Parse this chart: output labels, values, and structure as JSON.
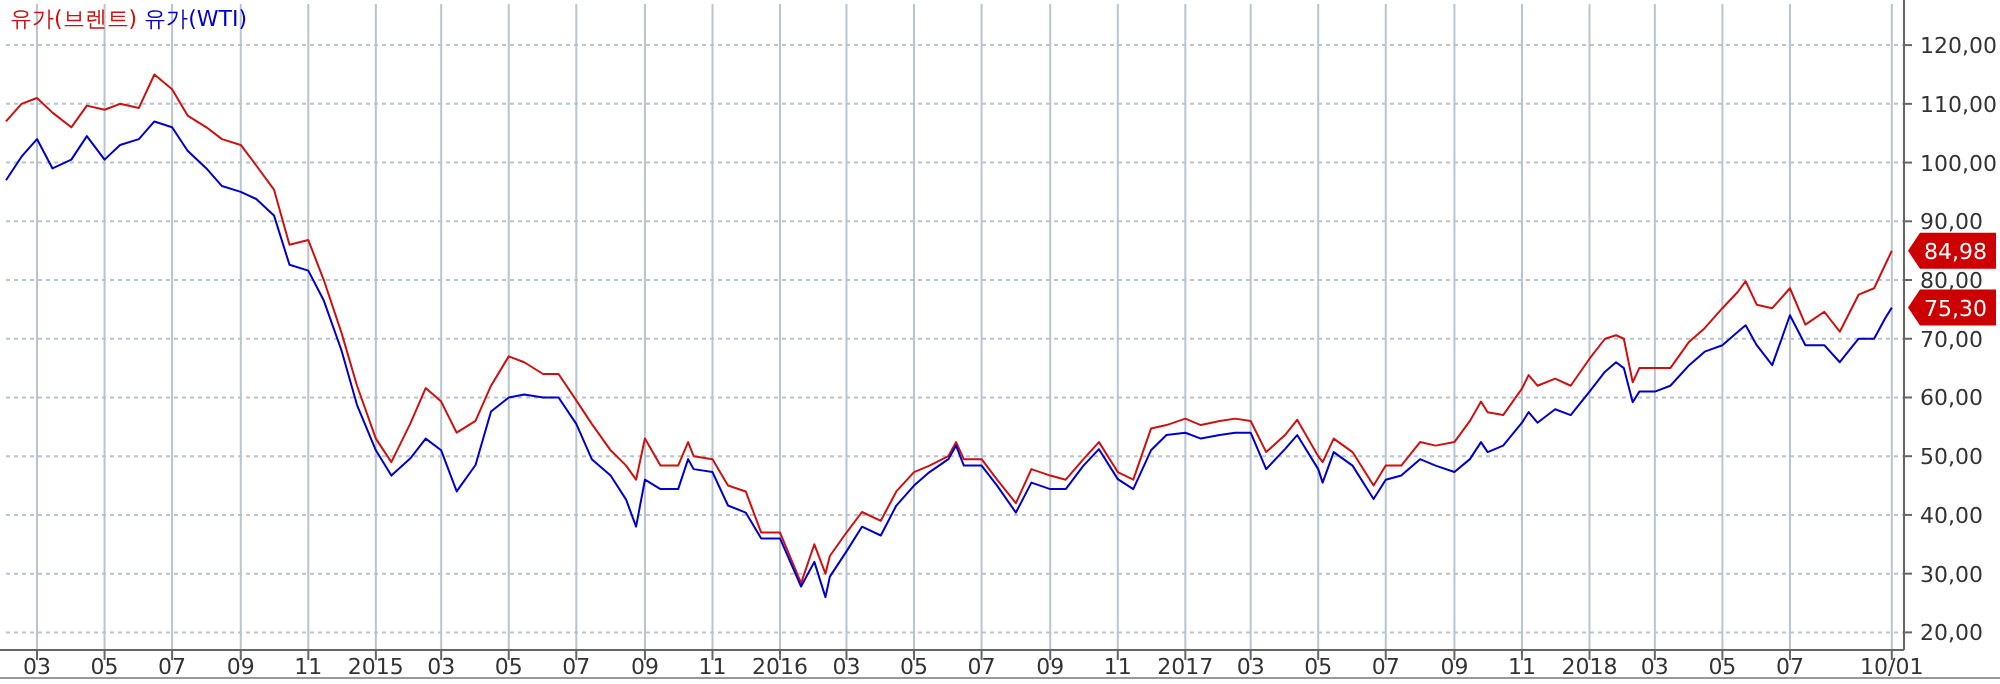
{
  "chart_data": {
    "type": "line",
    "x": [
      "2014-02-01",
      "2014-02-15",
      "2014-03-01",
      "2014-03-15",
      "2014-04-01",
      "2014-04-15",
      "2014-05-01",
      "2014-05-15",
      "2014-06-01",
      "2014-06-15",
      "2014-07-01",
      "2014-07-15",
      "2014-08-01",
      "2014-08-15",
      "2014-09-01",
      "2014-09-15",
      "2014-10-01",
      "2014-10-15",
      "2014-11-01",
      "2014-11-15",
      "2014-12-01",
      "2014-12-15",
      "2015-01-01",
      "2015-01-15",
      "2015-02-01",
      "2015-02-15",
      "2015-03-01",
      "2015-03-15",
      "2015-04-01",
      "2015-04-15",
      "2015-05-01",
      "2015-05-15",
      "2015-06-01",
      "2015-06-15",
      "2015-07-01",
      "2015-07-15",
      "2015-08-01",
      "2015-08-15",
      "2015-08-24",
      "2015-09-01",
      "2015-09-15",
      "2015-10-01",
      "2015-10-10",
      "2015-10-15",
      "2015-11-01",
      "2015-11-15",
      "2015-12-01",
      "2015-12-15",
      "2016-01-01",
      "2016-01-20",
      "2016-02-01",
      "2016-02-11",
      "2016-02-15",
      "2016-03-01",
      "2016-03-15",
      "2016-04-01",
      "2016-04-15",
      "2016-05-01",
      "2016-05-15",
      "2016-06-01",
      "2016-06-08",
      "2016-06-15",
      "2016-07-01",
      "2016-07-15",
      "2016-08-01",
      "2016-08-15",
      "2016-09-01",
      "2016-09-15",
      "2016-10-01",
      "2016-10-15",
      "2016-11-01",
      "2016-11-15",
      "2016-12-01",
      "2016-12-15",
      "2017-01-01",
      "2017-01-15",
      "2017-02-01",
      "2017-02-15",
      "2017-03-01",
      "2017-03-15",
      "2017-04-01",
      "2017-04-12",
      "2017-05-01",
      "2017-05-05",
      "2017-05-15",
      "2017-06-01",
      "2017-06-20",
      "2017-07-01",
      "2017-07-15",
      "2017-08-01",
      "2017-08-15",
      "2017-09-01",
      "2017-09-15",
      "2017-09-25",
      "2017-10-01",
      "2017-10-15",
      "2017-11-01",
      "2017-11-07",
      "2017-11-15",
      "2017-12-01",
      "2017-12-15",
      "2018-01-01",
      "2018-01-15",
      "2018-01-25",
      "2018-02-01",
      "2018-02-09",
      "2018-02-15",
      "2018-03-01",
      "2018-03-15",
      "2018-04-01",
      "2018-04-15",
      "2018-05-01",
      "2018-05-15",
      "2018-05-22",
      "2018-06-01",
      "2018-06-15",
      "2018-07-01",
      "2018-07-15",
      "2018-08-01",
      "2018-08-15",
      "2018-09-01",
      "2018-09-15",
      "2018-09-25",
      "2018-10-01"
    ],
    "series": [
      {
        "name": "유가(브렌트)",
        "color": "#cc1111",
        "values": [
          107,
          110,
          111,
          108.5,
          106,
          109.7,
          109,
          110,
          109.3,
          115,
          112.5,
          108,
          106,
          104,
          103,
          99.5,
          95.4,
          86,
          86.8,
          80,
          71,
          62,
          53,
          49,
          55.5,
          61.6,
          59.3,
          54,
          56,
          62,
          67,
          66,
          64,
          64,
          59.5,
          55.5,
          51,
          48.4,
          46,
          53,
          48.4,
          48.4,
          52.4,
          50,
          49.5,
          45,
          44,
          37,
          37,
          28.4,
          35,
          30,
          33,
          37,
          40.5,
          39,
          44,
          47.3,
          48.4,
          50,
          52.4,
          49.5,
          49.5,
          46,
          42,
          47.8,
          46.7,
          46,
          49.5,
          52.4,
          47.3,
          46,
          54.7,
          55.3,
          56.4,
          55.3,
          56,
          56.4,
          56,
          50.7,
          53.6,
          56.2,
          50,
          49,
          53,
          50.7,
          45,
          48.4,
          48.4,
          52.4,
          51.8,
          52.4,
          56,
          59.3,
          57.5,
          57,
          61.5,
          63.8,
          62,
          63.2,
          62,
          66.6,
          70,
          70.6,
          70,
          62.6,
          65,
          65,
          65,
          69.5,
          71.8,
          75.2,
          78,
          79.8,
          75.8,
          75.2,
          78.6,
          72.4,
          74.6,
          71.2,
          77.5,
          78.6,
          82.6,
          84.98
        ]
      },
      {
        "name": "유가(WTI)",
        "color": "#0000cc",
        "values": [
          97,
          101,
          104,
          99,
          100.5,
          104.5,
          100.5,
          103,
          104,
          107,
          106,
          102,
          99,
          96,
          95,
          93.8,
          91,
          82.6,
          81.6,
          76.5,
          68,
          58.7,
          51,
          46.7,
          49.6,
          53,
          51,
          44,
          48.5,
          57.6,
          60,
          60.5,
          60,
          60,
          55.5,
          49.5,
          46.7,
          42.6,
          38,
          46,
          44.4,
          44.4,
          49.5,
          47.8,
          47.3,
          41.6,
          40.4,
          36,
          36,
          27.8,
          32,
          26,
          29.5,
          33.8,
          38,
          36.5,
          41.6,
          45,
          47.3,
          49.5,
          51.8,
          48.4,
          48.4,
          45,
          40.4,
          45.5,
          44.4,
          44.4,
          48.4,
          51.2,
          46.1,
          44.4,
          51,
          53.6,
          54,
          53,
          53.6,
          54,
          54,
          47.8,
          51.2,
          53.6,
          47.8,
          45.5,
          50.7,
          48.4,
          42.7,
          46,
          46.7,
          49.5,
          48.4,
          47.3,
          49.5,
          52.4,
          50.7,
          51.8,
          55.7,
          57.5,
          55.7,
          58,
          57,
          61,
          64.4,
          66,
          65,
          59.2,
          61,
          61,
          62,
          65.5,
          67.8,
          68.9,
          71.2,
          72.3,
          68.9,
          65.5,
          74,
          68.9,
          68.9,
          66,
          70,
          70,
          73.5,
          75.3
        ]
      }
    ],
    "annotations": [
      {
        "text": "84,98",
        "x": "2018-10-01",
        "y": 84.98
      },
      {
        "text": "75,30",
        "x": "2018-10-01",
        "y": 75.3
      }
    ],
    "xlim": [
      "2014-02-01",
      "2018-10-12"
    ],
    "xticks": [
      {
        "value": "2014-03-01",
        "label": "03"
      },
      {
        "value": "2014-05-01",
        "label": "05"
      },
      {
        "value": "2014-07-01",
        "label": "07"
      },
      {
        "value": "2014-09-01",
        "label": "09"
      },
      {
        "value": "2014-11-01",
        "label": "11"
      },
      {
        "value": "2015-01-01",
        "label": "2015"
      },
      {
        "value": "2015-03-01",
        "label": "03"
      },
      {
        "value": "2015-05-01",
        "label": "05"
      },
      {
        "value": "2015-07-01",
        "label": "07"
      },
      {
        "value": "2015-09-01",
        "label": "09"
      },
      {
        "value": "2015-11-01",
        "label": "11"
      },
      {
        "value": "2016-01-01",
        "label": "2016"
      },
      {
        "value": "2016-03-01",
        "label": "03"
      },
      {
        "value": "2016-05-01",
        "label": "05"
      },
      {
        "value": "2016-07-01",
        "label": "07"
      },
      {
        "value": "2016-09-01",
        "label": "09"
      },
      {
        "value": "2016-11-01",
        "label": "11"
      },
      {
        "value": "2017-01-01",
        "label": "2017"
      },
      {
        "value": "2017-03-01",
        "label": "03"
      },
      {
        "value": "2017-05-01",
        "label": "05"
      },
      {
        "value": "2017-07-01",
        "label": "07"
      },
      {
        "value": "2017-09-01",
        "label": "09"
      },
      {
        "value": "2017-11-01",
        "label": "11"
      },
      {
        "value": "2018-01-01",
        "label": "2018"
      },
      {
        "value": "2018-03-01",
        "label": "03"
      },
      {
        "value": "2018-05-01",
        "label": "05"
      },
      {
        "value": "2018-07-01",
        "label": "07"
      },
      {
        "value": "2018-10-01",
        "label": "10/01"
      }
    ],
    "ylim": [
      17,
      127
    ],
    "yticks": [
      {
        "value": 20,
        "label": "20,00"
      },
      {
        "value": 30,
        "label": "30,00"
      },
      {
        "value": 40,
        "label": "40,00"
      },
      {
        "value": 50,
        "label": "50,00"
      },
      {
        "value": 60,
        "label": "60,00"
      },
      {
        "value": 70,
        "label": "70,00"
      },
      {
        "value": 80,
        "label": "80,00"
      },
      {
        "value": 90,
        "label": "90,00"
      },
      {
        "value": 100,
        "label": "100,00"
      },
      {
        "value": 110,
        "label": "110,00"
      },
      {
        "value": 120,
        "label": "120,00"
      }
    ],
    "grid": true,
    "legend": "top left"
  }
}
